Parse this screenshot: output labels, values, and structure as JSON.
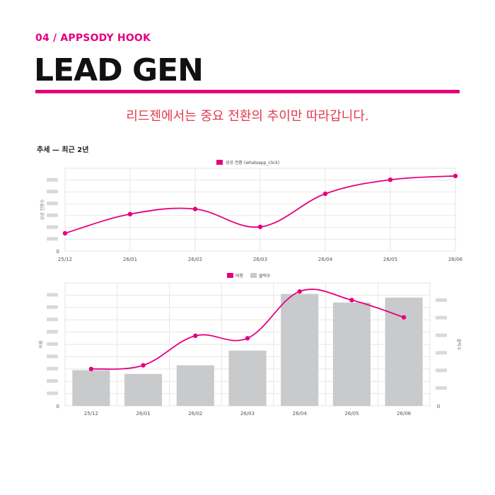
{
  "header": {
    "eyebrow": "04 / APPSODY HOOK",
    "title": "LEAD GEN",
    "tagline": "리드젠에서는 중요 전환의 추이만 따라갑니다.",
    "section_label": "추세 — 최근 2년"
  },
  "colors": {
    "accent": "#e6007e",
    "bar": "#c8cacc",
    "grid": "#e6e6e6"
  },
  "chart_data": [
    {
      "type": "line",
      "categories": [
        "25/12",
        "26/01",
        "26/02",
        "26/03",
        "26/04",
        "26/05",
        "26/06"
      ],
      "series": [
        {
          "name": "성공 전환 (whatsapp_click)",
          "values": [
            1.4,
            2.9,
            3.3,
            1.9,
            4.5,
            5.6,
            5.9
          ]
        }
      ],
      "ylabel": "성공 전환수",
      "ylim": [
        0,
        6.5
      ],
      "y_zero_label": "0",
      "legend": "top-center",
      "grid": true
    },
    {
      "type": "bar",
      "categories": [
        "25/12",
        "26/01",
        "26/02",
        "26/03",
        "26/04",
        "26/05",
        "26/06"
      ],
      "series": [
        {
          "name": "비용",
          "type": "line",
          "axis": "left",
          "values": [
            3.0,
            3.3,
            5.7,
            5.5,
            9.3,
            8.6,
            7.2
          ]
        },
        {
          "name": "클릭수",
          "type": "bar",
          "axis": "right",
          "values": [
            2.9,
            2.6,
            3.3,
            4.5,
            9.1,
            8.4,
            8.8
          ]
        }
      ],
      "ylabel": "비용",
      "y2label": "클릭수",
      "ylim": [
        0,
        10
      ],
      "y2lim": [
        0,
        10
      ],
      "y_zero_label": "0",
      "y2_zero_label": "0",
      "legend": "top-center",
      "grid": true
    }
  ]
}
